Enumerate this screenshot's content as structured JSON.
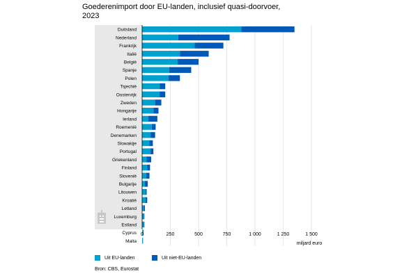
{
  "chart_data": {
    "type": "bar",
    "orientation": "horizontal",
    "stacked": true,
    "title": "Goederenimport door EU-landen, inclusief quasi-doorvoer, 2023",
    "xlabel": "miljard euro",
    "ylabel": "",
    "xlim": [
      0,
      1500
    ],
    "xticks": [
      0,
      250,
      500,
      750,
      1000,
      1250,
      1500
    ],
    "xtick_labels": [
      "0",
      "250",
      "500",
      "750",
      "1 000",
      "1 250",
      "1 500"
    ],
    "categories": [
      "Duitsland",
      "Nederland",
      "Frankrijk",
      "Italië",
      "België",
      "Spanje",
      "Polen",
      "Tsjechië",
      "Oostenrijk",
      "Zweden",
      "Hongarije",
      "Ierland",
      "Roemenië",
      "Denemarken",
      "Slowakije",
      "Portugal",
      "Griekenland",
      "Finland",
      "Slovenië",
      "Bulgarije",
      "Litouwen",
      "Kroatië",
      "Letland",
      "Luxemburg",
      "Estland",
      "Cyprus",
      "Malta"
    ],
    "series": [
      {
        "name": "Uit EU-landen",
        "color": "#00a1cd",
        "values": [
          880,
          320,
          465,
          335,
          315,
          240,
          235,
          155,
          155,
          115,
          100,
          55,
          85,
          75,
          65,
          75,
          40,
          45,
          35,
          25,
          30,
          30,
          15,
          15,
          15,
          8,
          5
        ]
      },
      {
        "name": "Uit niet-EU-landen",
        "color": "#0058b8",
        "values": [
          470,
          455,
          255,
          255,
          185,
          195,
          100,
          50,
          50,
          55,
          45,
          80,
          35,
          40,
          30,
          25,
          40,
          25,
          30,
          25,
          10,
          15,
          10,
          5,
          5,
          5,
          3
        ]
      }
    ],
    "legend_position": "bottom-left",
    "grid": true
  },
  "source_text": "Bron: CBS, Eurostat",
  "colors": {
    "eu": "#00a1cd",
    "non_eu": "#0058b8",
    "label_band": "#e8e8e8",
    "grid": "#d6d6d6"
  },
  "logo_icon": "cbs-logo-icon"
}
